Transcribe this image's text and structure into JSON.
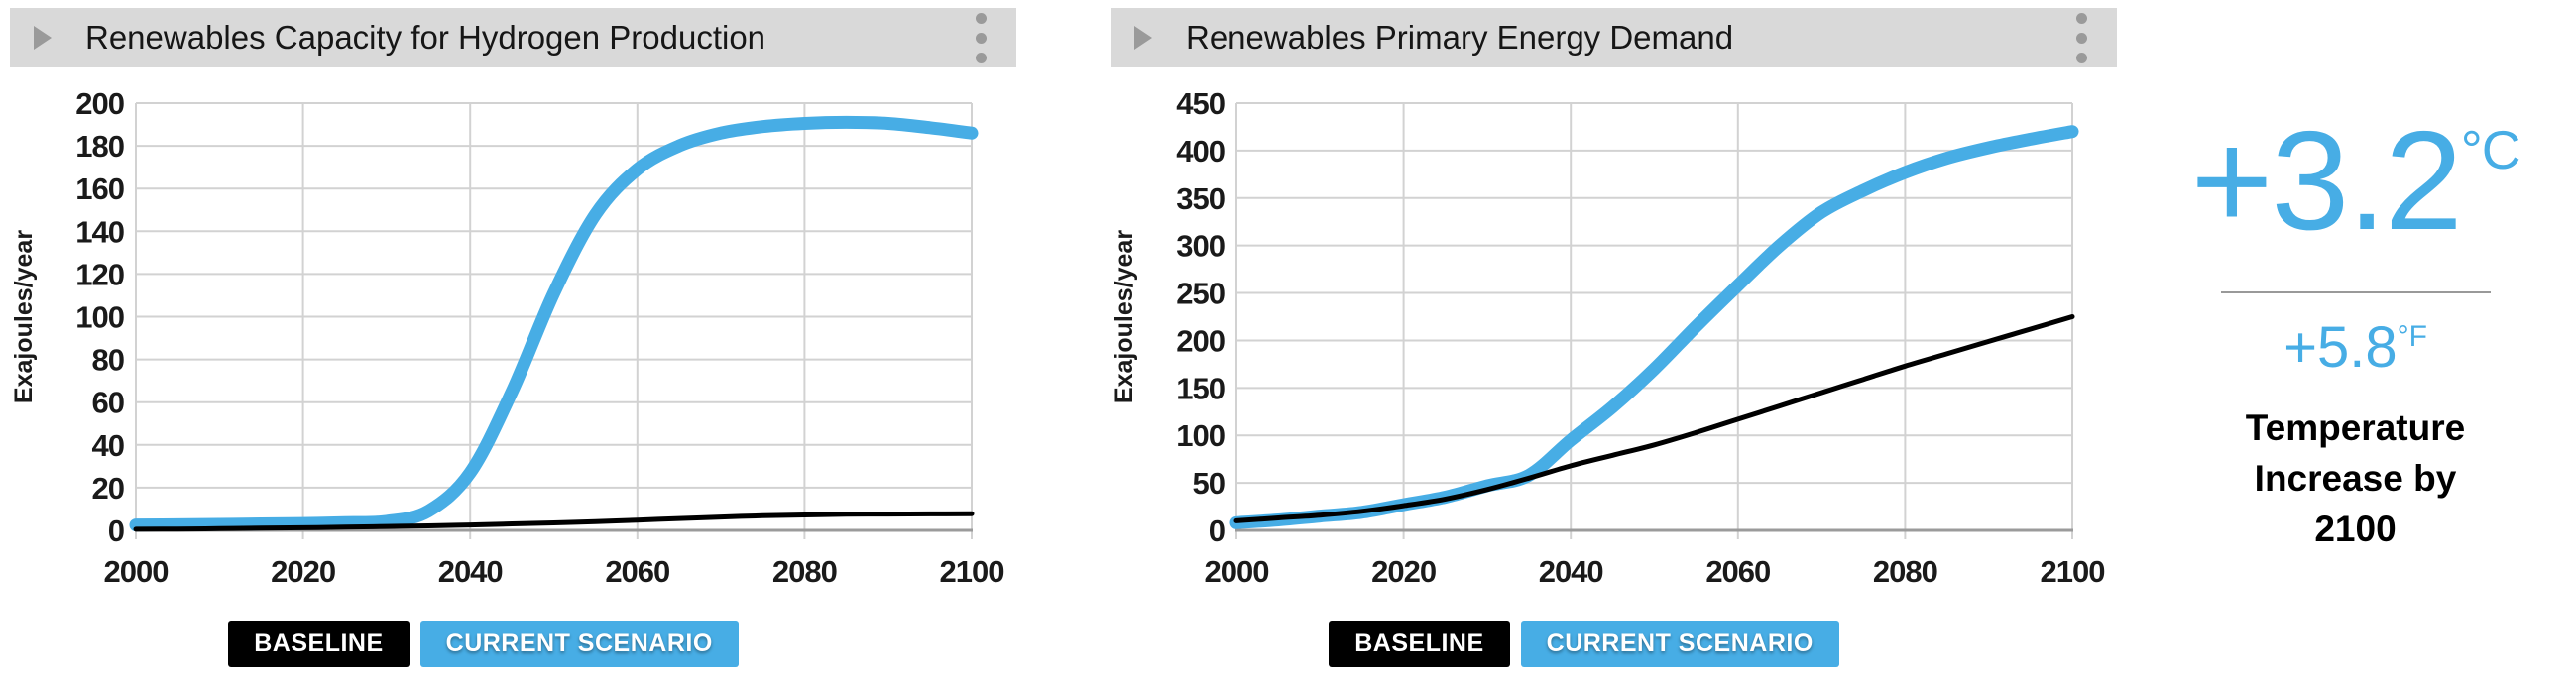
{
  "colors": {
    "accent_blue": "#47ade5",
    "baseline_black": "#000000",
    "header_bg": "#d9d9d9",
    "icon_gray": "#9a9a9a",
    "grid": "#d2d2d2",
    "zero_line": "#9b9b9b",
    "tick_text": "#1a1a1a",
    "divider_gray": "#999999"
  },
  "legend": {
    "baseline_label": "BASELINE",
    "current_label": "CURRENT SCENARIO"
  },
  "chart_data": [
    {
      "type": "line",
      "title": "Renewables Capacity for Hydrogen Production",
      "ylabel": "Exajoules/year",
      "xlabel": "",
      "xlim": [
        2000,
        2100
      ],
      "ylim": [
        0,
        200
      ],
      "xtick_step": 20,
      "ytick_step": 20,
      "grid": true,
      "legend_position": "bottom",
      "x": [
        2000,
        2005,
        2010,
        2015,
        2020,
        2025,
        2030,
        2035,
        2040,
        2045,
        2050,
        2055,
        2060,
        2065,
        2070,
        2075,
        2080,
        2085,
        2090,
        2095,
        2100
      ],
      "series": [
        {
          "name": "BASELINE",
          "color": "#000000",
          "width": 5,
          "values": [
            0.5,
            0.6,
            0.8,
            1.0,
            1.2,
            1.5,
            1.8,
            2.1,
            2.5,
            3.0,
            3.5,
            4.1,
            4.8,
            5.5,
            6.2,
            6.8,
            7.2,
            7.5,
            7.6,
            7.7,
            7.8
          ]
        },
        {
          "name": "CURRENT SCENARIO",
          "color": "#47ade5",
          "width": 13,
          "values": [
            2.5,
            2.6,
            2.8,
            3.0,
            3.2,
            3.6,
            4.2,
            9,
            27,
            65,
            111,
            148,
            169,
            180,
            186,
            189,
            190.5,
            191,
            190.5,
            188.5,
            186
          ]
        }
      ]
    },
    {
      "type": "line",
      "title": "Renewables Primary Energy Demand",
      "ylabel": "Exajoules/year",
      "xlabel": "",
      "xlim": [
        2000,
        2100
      ],
      "ylim": [
        0,
        450
      ],
      "xtick_step": 20,
      "ytick_step": 50,
      "grid": true,
      "legend_position": "bottom",
      "x": [
        2000,
        2005,
        2010,
        2015,
        2020,
        2025,
        2030,
        2035,
        2040,
        2045,
        2050,
        2055,
        2060,
        2065,
        2070,
        2075,
        2080,
        2085,
        2090,
        2095,
        2100
      ],
      "series": [
        {
          "name": "BASELINE",
          "color": "#000000",
          "width": 5,
          "values": [
            10,
            13,
            16,
            20,
            26,
            33,
            43,
            55,
            68,
            79,
            90,
            103,
            117,
            131,
            145,
            159,
            173,
            186,
            199,
            212,
            225
          ]
        },
        {
          "name": "CURRENT SCENARIO",
          "color": "#47ade5",
          "width": 13,
          "values": [
            8,
            11,
            15,
            19,
            27,
            35,
            47,
            58,
            95,
            130,
            170,
            215,
            258,
            300,
            335,
            358,
            377,
            392,
            403,
            412,
            420
          ]
        }
      ]
    }
  ],
  "temperature": {
    "celsius_value": "+3.2",
    "celsius_unit": "°C",
    "fahrenheit_value": "+5.8",
    "fahrenheit_unit": "°F",
    "caption": "Temperature Increase by 2100"
  }
}
